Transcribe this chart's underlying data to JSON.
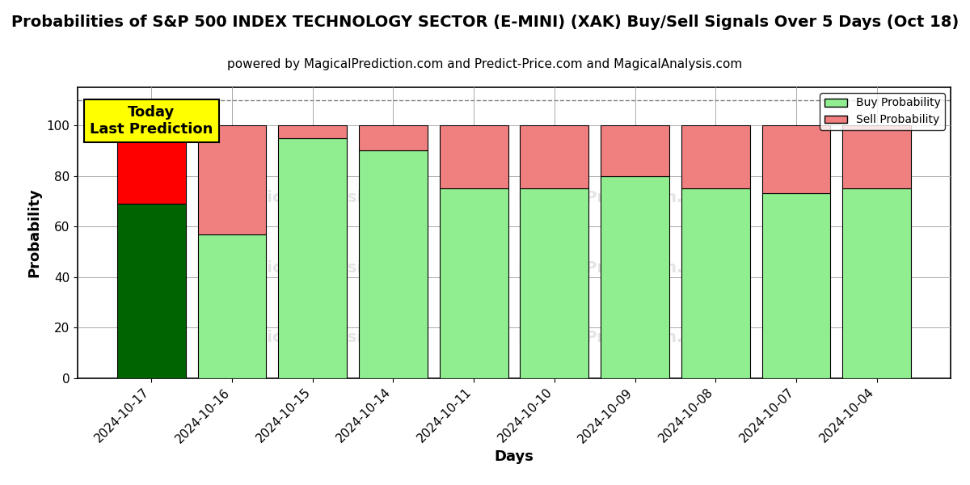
{
  "title": "Probabilities of S&P 500 INDEX TECHNOLOGY SECTOR (E-MINI) (XAK) Buy/Sell Signals Over 5 Days (Oct 18)",
  "subtitle": "powered by MagicalPrediction.com and Predict-Price.com and MagicalAnalysis.com",
  "xlabel": "Days",
  "ylabel": "Probability",
  "dates": [
    "2024-10-17",
    "2024-10-16",
    "2024-10-15",
    "2024-10-14",
    "2024-10-11",
    "2024-10-10",
    "2024-10-09",
    "2024-10-08",
    "2024-10-07",
    "2024-10-04"
  ],
  "buy_values": [
    69,
    57,
    95,
    90,
    75,
    75,
    80,
    75,
    73,
    75
  ],
  "sell_values": [
    31,
    43,
    5,
    10,
    25,
    25,
    20,
    25,
    27,
    25
  ],
  "today_bar_buy_color": "#006400",
  "today_bar_sell_color": "#ff0000",
  "other_bar_buy_color": "#90EE90",
  "other_bar_sell_color": "#F08080",
  "bar_edge_color": "#000000",
  "today_annotation_text": "Today\nLast Prediction",
  "today_annotation_bg": "#ffff00",
  "legend_buy_label": "Buy Probability",
  "legend_sell_label": "Sell Probability",
  "legend_buy_color": "#90EE90",
  "legend_sell_color": "#F08080",
  "ylim": [
    0,
    115
  ],
  "yticks": [
    0,
    20,
    40,
    60,
    80,
    100
  ],
  "grid_color": "#aaaaaa",
  "background_color": "#ffffff",
  "dashed_line_y": 110,
  "title_fontsize": 14,
  "subtitle_fontsize": 11,
  "axis_label_fontsize": 13,
  "tick_fontsize": 11,
  "bar_width": 0.85
}
